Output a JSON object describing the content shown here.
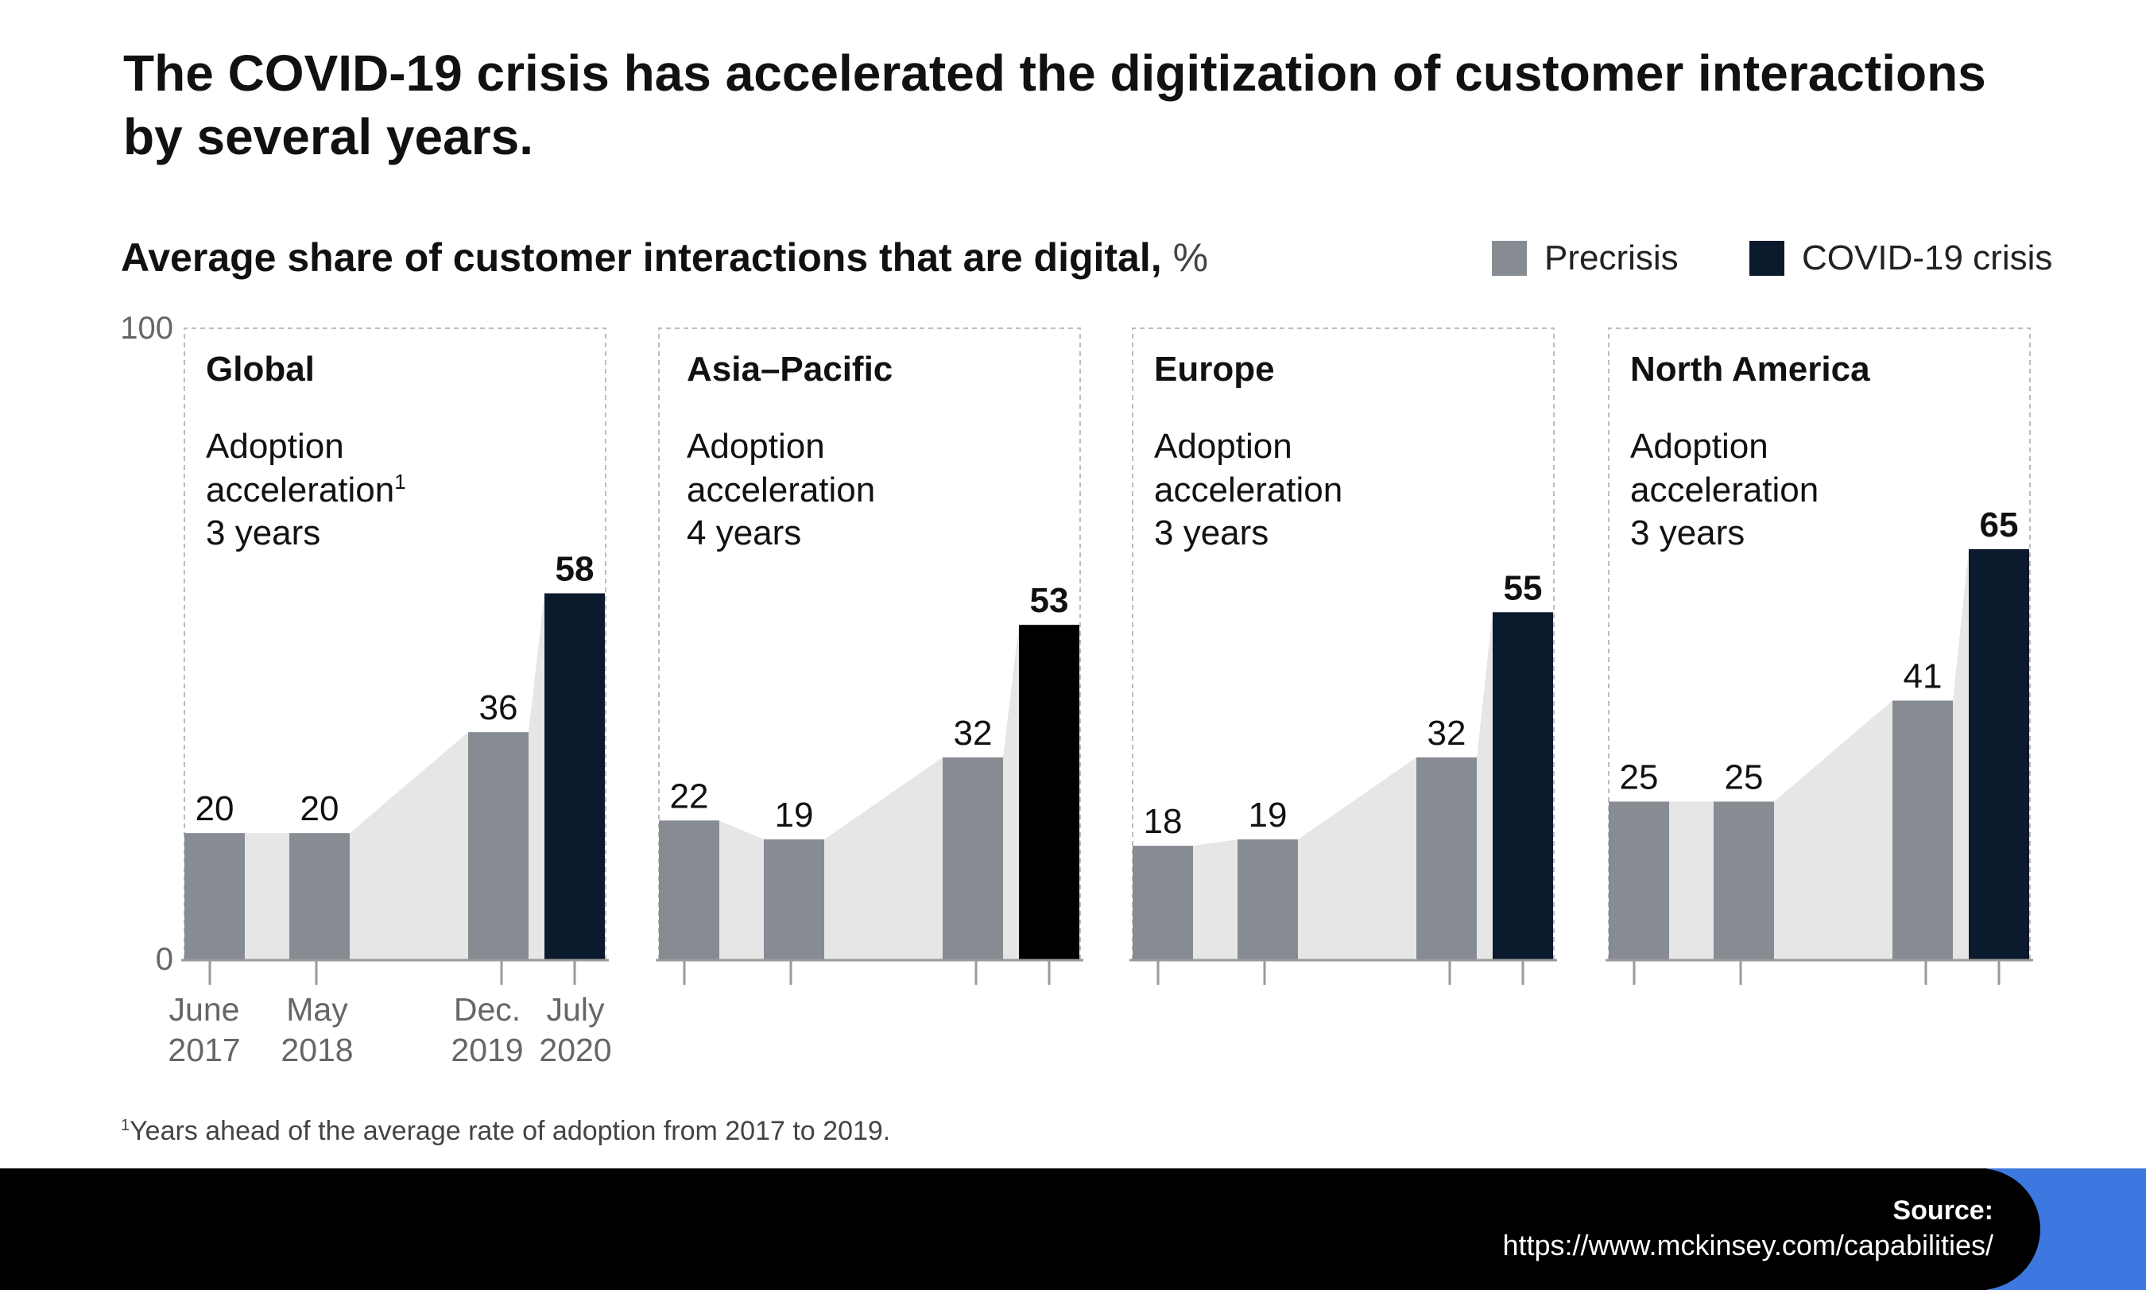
{
  "headline": "The COVID-19 crisis has accelerated the digitization of customer interactions by several years.",
  "subtitle": {
    "text": "Average share of customer interactions that are digital,",
    "unit": "%"
  },
  "legend": [
    {
      "label": "Precrisis",
      "color": "#868c92"
    },
    {
      "label": "COVID-19 crisis",
      "color": "#0b1a2c"
    }
  ],
  "footnote": {
    "marker": "1",
    "text": "Years ahead of the average rate of adoption from 2017 to 2019."
  },
  "footer": {
    "source_label": "Source:",
    "source_url": "https://www.mckinsey.com/capabilities/"
  },
  "colors": {
    "precrisis": "#868c92",
    "crisis": "#0b1a2c",
    "area": "#e6e6e6",
    "accent": "#3d78e0"
  },
  "chart_data": {
    "type": "bar",
    "title": "Average share of customer interactions that are digital, %",
    "ylabel": "%",
    "ylim": [
      0,
      100
    ],
    "y_ticks": [
      "0",
      "100"
    ],
    "categories": [
      "June 2017",
      "May 2018",
      "Dec. 2019",
      "July 2020"
    ],
    "x_tick_labels": [
      [
        "June",
        "2017"
      ],
      [
        "May",
        "2018"
      ],
      [
        "Dec.",
        "2019"
      ],
      [
        "July",
        "2020"
      ]
    ],
    "series_types": [
      "Precrisis",
      "Precrisis",
      "Precrisis",
      "COVID-19 crisis"
    ],
    "panels": [
      {
        "name": "Global",
        "caption": [
          "Adoption",
          "acceleration"
        ],
        "footnote_marker": "1",
        "acceleration": "3 years",
        "values": [
          20,
          20,
          36,
          58
        ],
        "crisis_color": "#0b1a2c"
      },
      {
        "name": "Asia–Pacific",
        "caption": [
          "Adoption",
          "acceleration"
        ],
        "footnote_marker": "",
        "acceleration": "4 years",
        "values": [
          22,
          19,
          32,
          53
        ],
        "crisis_color": "#000000"
      },
      {
        "name": "Europe",
        "caption": [
          "Adoption",
          "acceleration"
        ],
        "footnote_marker": "",
        "acceleration": "3 years",
        "values": [
          18,
          19,
          32,
          55
        ],
        "crisis_color": "#0b1a2c"
      },
      {
        "name": "North America",
        "caption": [
          "Adoption",
          "acceleration"
        ],
        "footnote_marker": "",
        "acceleration": "3 years",
        "values": [
          25,
          25,
          41,
          65
        ],
        "crisis_color": "#0b1a2c"
      }
    ]
  }
}
